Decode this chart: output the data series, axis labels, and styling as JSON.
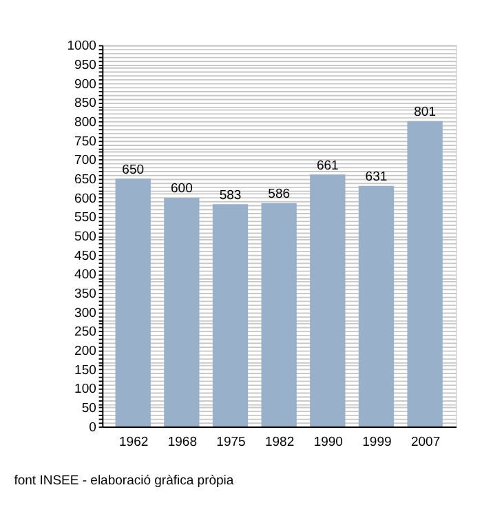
{
  "chart_data": {
    "type": "bar",
    "categories": [
      "1962",
      "1968",
      "1975",
      "1982",
      "1990",
      "1999",
      "2007"
    ],
    "values": [
      650,
      600,
      583,
      586,
      661,
      631,
      801
    ],
    "color": "#98b0c9",
    "data_labels": true,
    "ylim": [
      0,
      1000
    ],
    "yticks": [
      0,
      {
        "value": 10,
        "label": null
      },
      {
        "value": 20,
        "label": null
      },
      {
        "value": 30,
        "label": null
      },
      {
        "value": 40,
        "label": null
      },
      50,
      {
        "value": 60,
        "label": null
      },
      {
        "value": 70,
        "label": null
      },
      {
        "value": 80,
        "label": null
      },
      {
        "value": 90,
        "label": null
      },
      100,
      {
        "value": 110,
        "label": null
      },
      {
        "value": 120,
        "label": null
      },
      {
        "value": 130,
        "label": null
      },
      {
        "value": 140,
        "label": null
      },
      150,
      {
        "value": 160,
        "label": null
      },
      {
        "value": 170,
        "label": null
      },
      {
        "value": 180,
        "label": null
      },
      {
        "value": 190,
        "label": null
      },
      200,
      {
        "value": 210,
        "label": null
      },
      {
        "value": 220,
        "label": null
      },
      {
        "value": 230,
        "label": null
      },
      {
        "value": 240,
        "label": null
      },
      250,
      {
        "value": 260,
        "label": null
      },
      {
        "value": 270,
        "label": null
      },
      {
        "value": 280,
        "label": null
      },
      {
        "value": 290,
        "label": null
      },
      300,
      {
        "value": 310,
        "label": null
      },
      {
        "value": 320,
        "label": null
      },
      {
        "value": 330,
        "label": null
      },
      {
        "value": 340,
        "label": null
      },
      350,
      {
        "value": 360,
        "label": null
      },
      {
        "value": 370,
        "label": null
      },
      {
        "value": 380,
        "label": null
      },
      {
        "value": 390,
        "label": null
      },
      400,
      {
        "value": 410,
        "label": null
      },
      {
        "value": 420,
        "label": null
      },
      {
        "value": 430,
        "label": null
      },
      {
        "value": 440,
        "label": null
      },
      450,
      {
        "value": 460,
        "label": null
      },
      {
        "value": 470,
        "label": null
      },
      {
        "value": 480,
        "label": null
      },
      {
        "value": 490,
        "label": null
      },
      500,
      {
        "value": 510,
        "label": null
      },
      {
        "value": 520,
        "label": null
      },
      {
        "value": 530,
        "label": null
      },
      {
        "value": 540,
        "label": null
      },
      550,
      {
        "value": 560,
        "label": null
      },
      {
        "value": 570,
        "label": null
      },
      {
        "value": 580,
        "label": null
      },
      {
        "value": 590,
        "label": null
      },
      600,
      {
        "value": 610,
        "label": null
      },
      {
        "value": 620,
        "label": null
      },
      {
        "value": 630,
        "label": null
      },
      {
        "value": 640,
        "label": null
      },
      650,
      {
        "value": 660,
        "label": null
      },
      {
        "value": 670,
        "label": null
      },
      {
        "value": 680,
        "label": null
      },
      {
        "value": 690,
        "label": null
      },
      700,
      {
        "value": 710,
        "label": null
      },
      {
        "value": 720,
        "label": null
      },
      {
        "value": 730,
        "label": null
      },
      {
        "value": 740,
        "label": null
      },
      750,
      {
        "value": 760,
        "label": null
      },
      {
        "value": 770,
        "label": null
      },
      {
        "value": 780,
        "label": null
      },
      {
        "value": 790,
        "label": null
      },
      800,
      {
        "value": 810,
        "label": null
      },
      {
        "value": 820,
        "label": null
      },
      {
        "value": 830,
        "label": null
      },
      {
        "value": 840,
        "label": null
      },
      850,
      {
        "value": 860,
        "label": null
      },
      {
        "value": 870,
        "label": null
      },
      {
        "value": 880,
        "label": null
      },
      {
        "value": 890,
        "label": null
      },
      900,
      {
        "value": 910,
        "label": null
      },
      {
        "value": 920,
        "label": null
      },
      {
        "value": 930,
        "label": null
      },
      {
        "value": 940,
        "label": null
      },
      950,
      {
        "value": 960,
        "label": null
      },
      {
        "value": 970,
        "label": null
      },
      {
        "value": 980,
        "label": null
      },
      {
        "value": 990,
        "label": null
      },
      1000
    ],
    "grid": "y",
    "annotations": [
      "font INSEE - elaboració gràfica pròpia"
    ]
  }
}
